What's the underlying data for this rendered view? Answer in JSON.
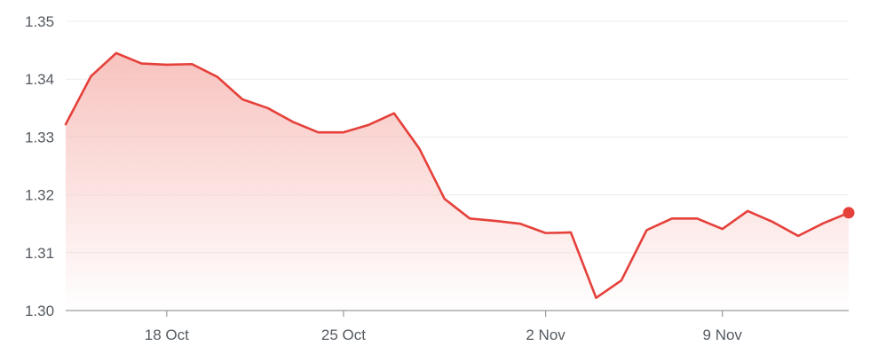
{
  "chart_data": {
    "type": "area",
    "title": "",
    "xlabel": "",
    "ylabel": "",
    "ylim": [
      1.3,
      1.35
    ],
    "y_ticks": [
      1.3,
      1.31,
      1.32,
      1.33,
      1.34,
      1.35
    ],
    "y_tick_labels": [
      "1.30",
      "1.31",
      "1.32",
      "1.33",
      "1.34",
      "1.35"
    ],
    "x_ticks": [
      {
        "date": "2023-10-18",
        "label": "18 Oct"
      },
      {
        "date": "2023-10-25",
        "label": "25 Oct"
      },
      {
        "date": "2023-11-02",
        "label": "2 Nov"
      },
      {
        "date": "2023-11-09",
        "label": "9 Nov"
      }
    ],
    "grid": true,
    "colors": {
      "line": "#e5403a",
      "fill": "#f6b8b3",
      "grid": "#ececec",
      "axis": "#9a9a9a",
      "tick_text": "#555b61"
    },
    "x": [
      "2023-10-14",
      "2023-10-15",
      "2023-10-16",
      "2023-10-17",
      "2023-10-18",
      "2023-10-19",
      "2023-10-20",
      "2023-10-21",
      "2023-10-22",
      "2023-10-23",
      "2023-10-24",
      "2023-10-25",
      "2023-10-26",
      "2023-10-27",
      "2023-10-28",
      "2023-10-29",
      "2023-10-30",
      "2023-10-31",
      "2023-11-01",
      "2023-11-02",
      "2023-11-03",
      "2023-11-04",
      "2023-11-05",
      "2023-11-06",
      "2023-11-07",
      "2023-11-08",
      "2023-11-09",
      "2023-11-10",
      "2023-11-11",
      "2023-11-12",
      "2023-11-13",
      "2023-11-14"
    ],
    "series": [
      {
        "values": [
          1.3322,
          1.3405,
          1.3445,
          1.3427,
          1.3425,
          1.3426,
          1.3404,
          1.3365,
          1.335,
          1.3326,
          1.3308,
          1.3308,
          1.3321,
          1.3341,
          1.328,
          1.3193,
          1.3159,
          1.3155,
          1.315,
          1.3134,
          1.3135,
          1.3022,
          1.3052,
          1.3139,
          1.3159,
          1.3159,
          1.3141,
          1.3172,
          1.3153,
          1.3129,
          1.3151,
          1.3169
        ]
      }
    ]
  }
}
